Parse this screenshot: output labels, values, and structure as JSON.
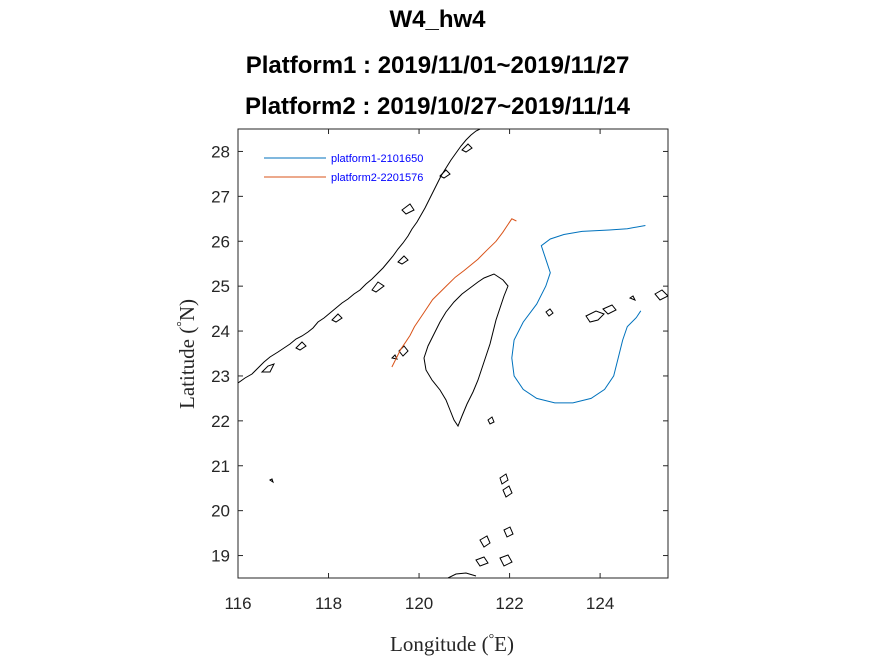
{
  "chart_data": {
    "type": "line",
    "title": [
      "W4_hw4",
      "Platform1 : 2019/11/01~2019/11/27",
      "Platform2 : 2019/10/27~2019/11/14"
    ],
    "xlabel": "Longitude (°E)",
    "xlabel_parts": {
      "pre": "Longitude (",
      "deg": "°",
      "post": "E)"
    },
    "ylabel": "Latitude (°N)",
    "ylabel_parts": {
      "pre": "Latitude (",
      "deg": "°",
      "post": "N)"
    },
    "xlim": [
      116,
      125.5
    ],
    "ylim": [
      18.5,
      28.5
    ],
    "xticks": [
      116,
      118,
      120,
      122,
      124
    ],
    "yticks": [
      19,
      20,
      21,
      22,
      23,
      24,
      25,
      26,
      27,
      28
    ],
    "grid": false,
    "legend_position": "top-left",
    "series": [
      {
        "name": "platform1-2101650",
        "color": "#0072bd",
        "x": [
          125.0,
          124.6,
          124.2,
          123.6,
          123.2,
          122.9,
          122.7,
          122.8,
          122.9,
          122.8,
          122.6,
          122.3,
          122.1,
          122.05,
          122.1,
          122.3,
          122.6,
          123.0,
          123.4,
          123.8,
          124.1,
          124.3,
          124.4,
          124.5,
          124.6,
          124.8,
          124.9
        ],
        "y": [
          26.35,
          26.28,
          26.25,
          26.22,
          26.15,
          26.05,
          25.9,
          25.6,
          25.3,
          25.0,
          24.6,
          24.2,
          23.8,
          23.4,
          23.0,
          22.7,
          22.5,
          22.4,
          22.4,
          22.5,
          22.7,
          23.0,
          23.4,
          23.8,
          24.1,
          24.3,
          24.45
        ]
      },
      {
        "name": "platform2-2201576",
        "color": "#d95319",
        "x": [
          119.4,
          119.5,
          119.6,
          119.7,
          119.8,
          119.9,
          120.1,
          120.3,
          120.6,
          120.8,
          121.0,
          121.3,
          121.5,
          121.7,
          121.85,
          121.95,
          122.05,
          122.15
        ],
        "y": [
          23.2,
          23.4,
          23.6,
          23.75,
          23.9,
          24.1,
          24.4,
          24.7,
          25.0,
          25.2,
          25.35,
          25.6,
          25.8,
          26.0,
          26.2,
          26.35,
          26.5,
          26.45
        ]
      }
    ]
  }
}
